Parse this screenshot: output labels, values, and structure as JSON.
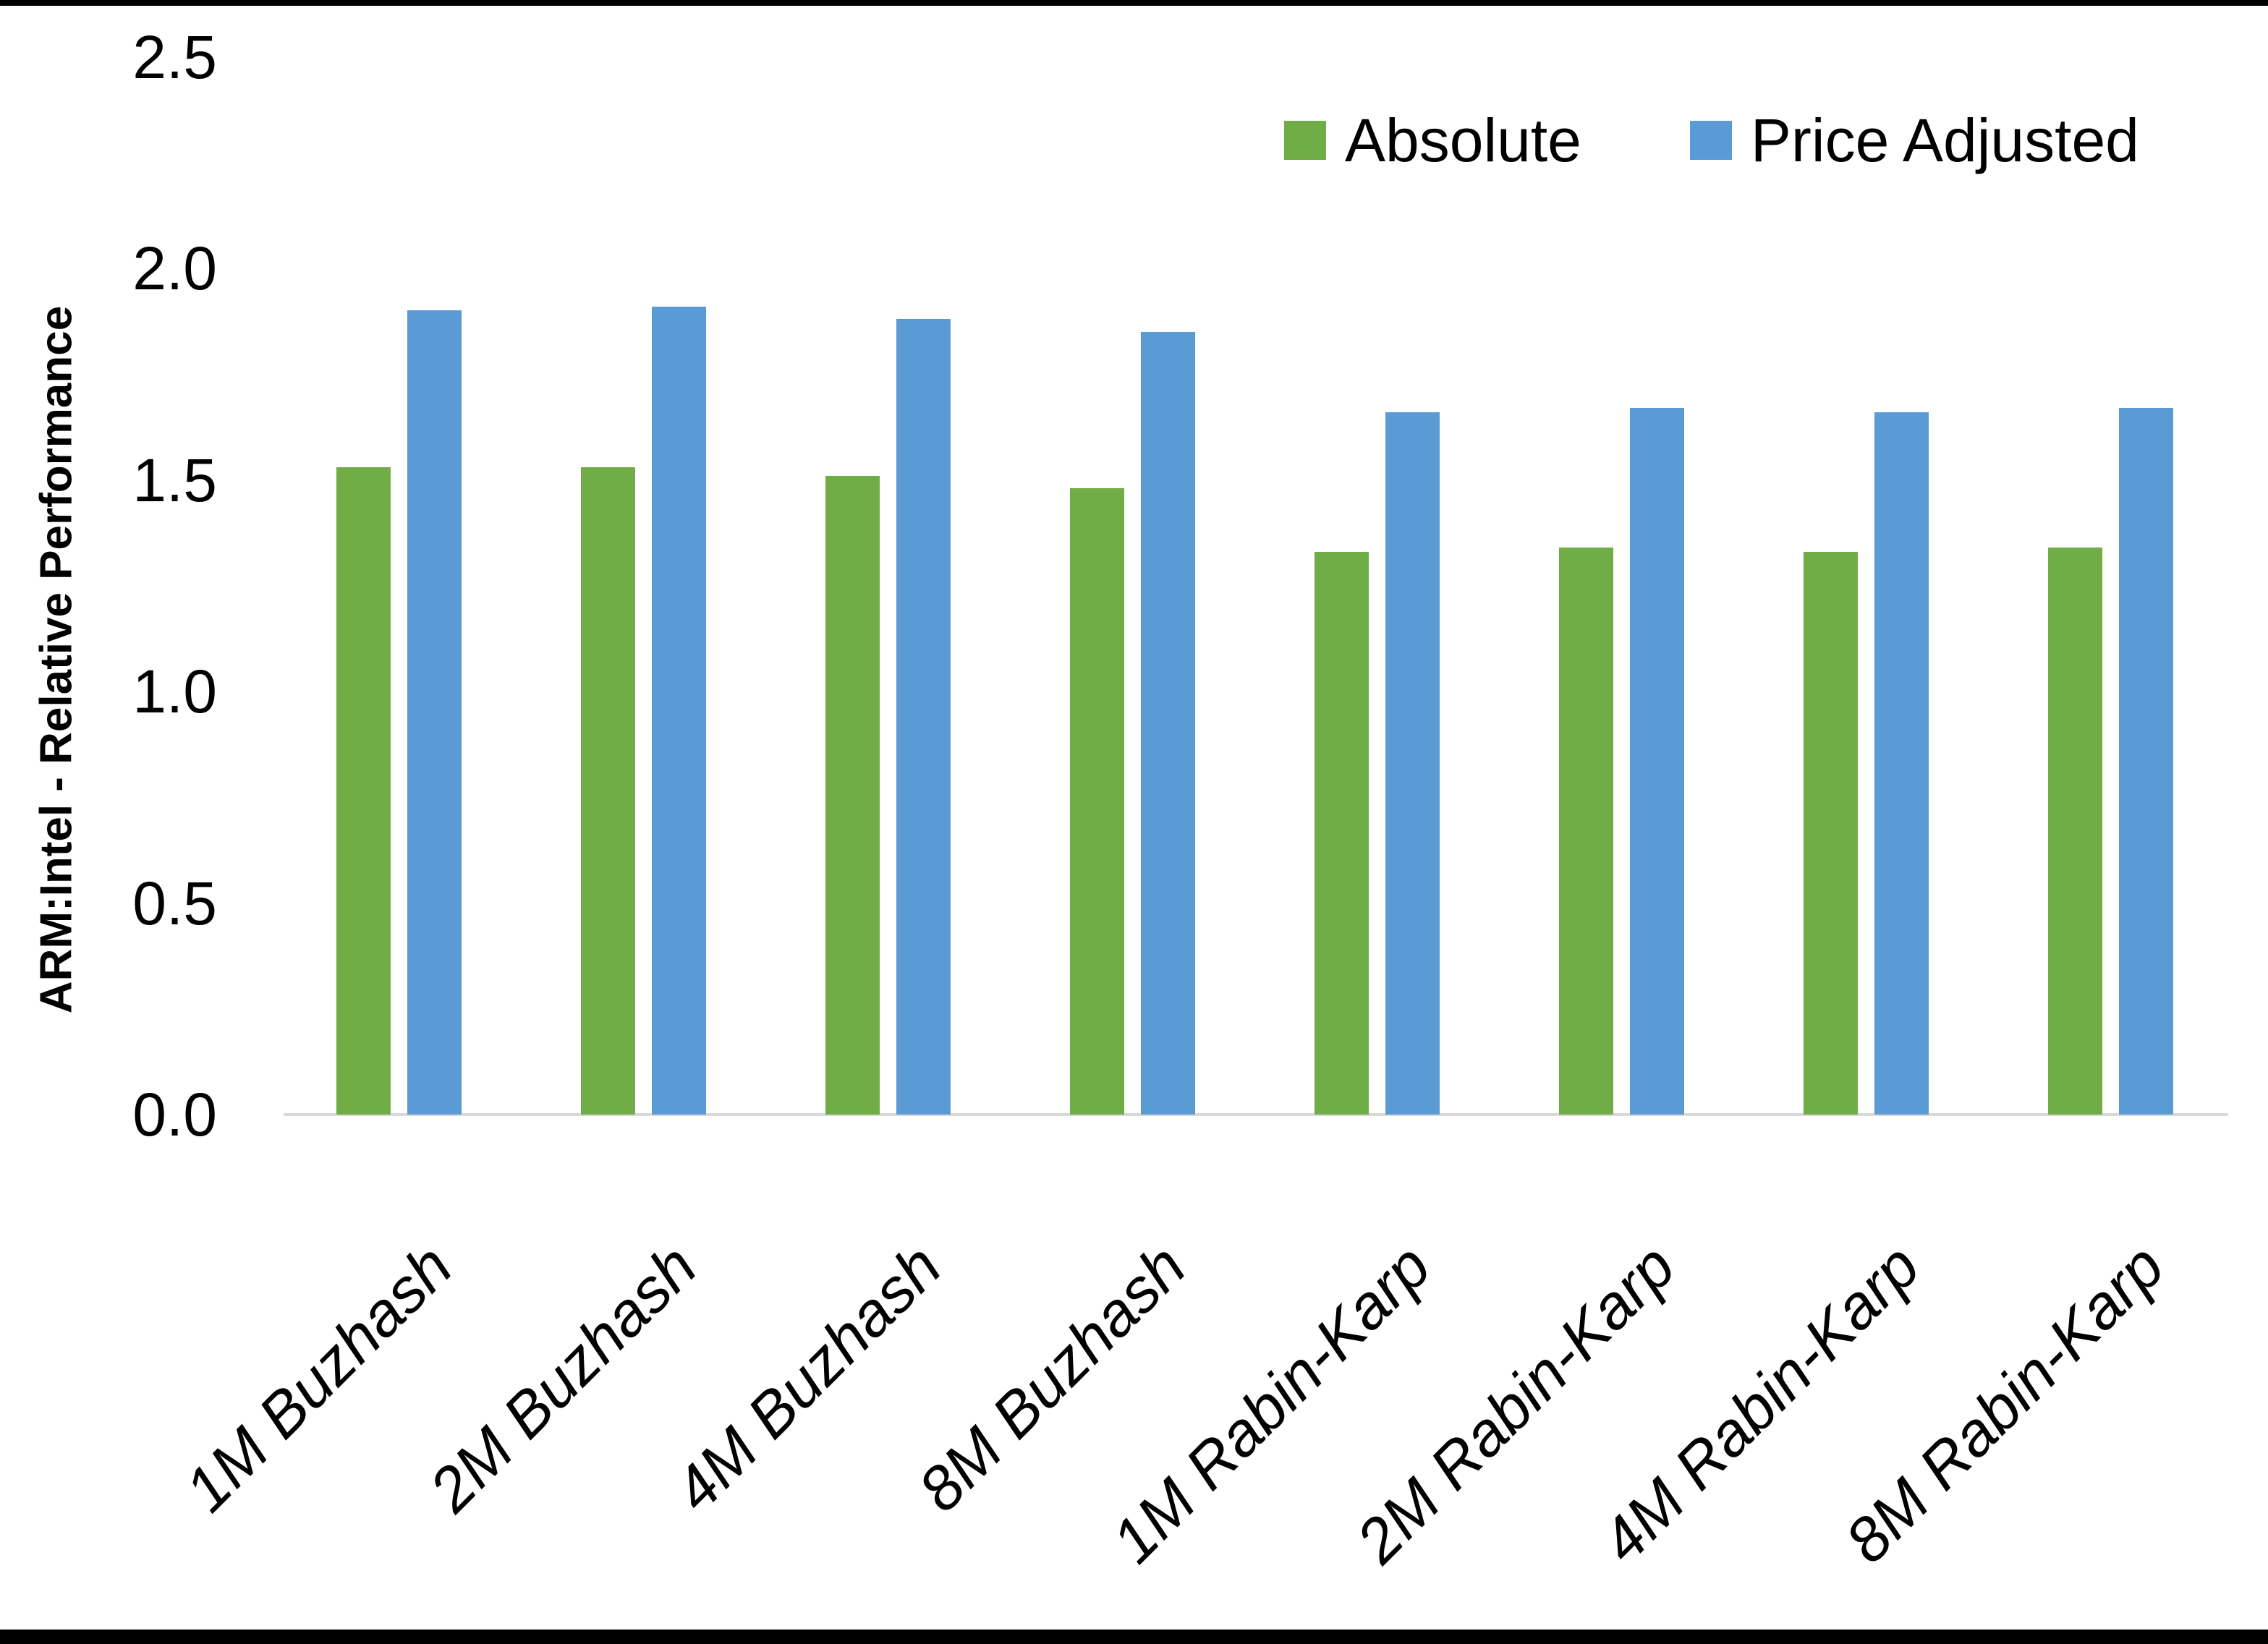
{
  "chart_data": {
    "type": "bar",
    "title": "",
    "xlabel": "",
    "ylabel": "ARM:Intel - Relative Performance",
    "ylim": [
      0,
      2.5
    ],
    "ytick_step": 0.5,
    "yticks": [
      "0.0",
      "0.5",
      "1.0",
      "1.5",
      "2.0",
      "2.5"
    ],
    "grid": false,
    "legend_position": "top-inside",
    "categories": [
      "1M Buzhash",
      "2M Buzhash",
      "4M Buzhash",
      "8M Buzhash",
      "1M Rabin-Karp",
      "2M Rabin-Karp",
      "4M Rabin-Karp",
      "8M Rabin-Karp"
    ],
    "series": [
      {
        "name": "Absolute",
        "color": "#70AD47",
        "values": [
          1.53,
          1.53,
          1.51,
          1.48,
          1.33,
          1.34,
          1.33,
          1.34
        ]
      },
      {
        "name": "Price Adjusted",
        "color": "#5B9BD5",
        "values": [
          1.9,
          1.91,
          1.88,
          1.85,
          1.66,
          1.67,
          1.66,
          1.67
        ]
      }
    ],
    "colors": {
      "axis_line": "#d9d9d9",
      "text": "#000000",
      "frame": "#000000"
    }
  }
}
